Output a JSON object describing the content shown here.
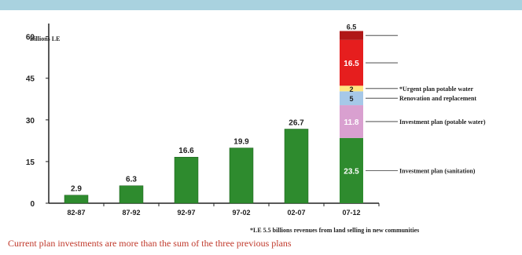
{
  "chart_data": {
    "type": "bar",
    "unit_label": "Billions LE",
    "categories": [
      "82-87",
      "87-92",
      "92-97",
      "97-02",
      "02-07",
      "07-12"
    ],
    "values": [
      2.9,
      6.3,
      16.6,
      19.9,
      26.7,
      null
    ],
    "value_labels": [
      "2.9",
      "6.3",
      "16.6",
      "19.9",
      "26.7",
      "6.5"
    ],
    "stacked_bar": {
      "category": "07-12",
      "segments": [
        {
          "name": "Investment plan (sanitation)",
          "value": 23.5,
          "label": "23.5",
          "color": "#2e8b2e"
        },
        {
          "name": "Investment plan (potable water)",
          "value": 11.8,
          "label": "11.8",
          "color": "#d9a0d0"
        },
        {
          "name": "Renovation and replacement",
          "value": 5,
          "label": "5",
          "color": "#a6c8e8"
        },
        {
          "name": "*Urgent plan potable water",
          "value": 2,
          "label": "2",
          "color": "#ffe680"
        },
        {
          "name": "",
          "value": 16.5,
          "label": "16.5",
          "color": "#e61e1e"
        },
        {
          "name": "",
          "value": 3.2,
          "label": "",
          "color": "#b01818"
        }
      ]
    },
    "y_ticks": [
      "0",
      "15",
      "30",
      "45",
      "60"
    ],
    "ylim": [
      0,
      63
    ],
    "bar_color": "#2e8b2e",
    "footnote": "*LE 5.5 billions revenues from land selling in new communities",
    "grid": false
  },
  "caption": "Current plan investments are more than the sum of the three previous plans",
  "colors": {
    "caption": "#c0392b",
    "band": "#a9d2df"
  }
}
